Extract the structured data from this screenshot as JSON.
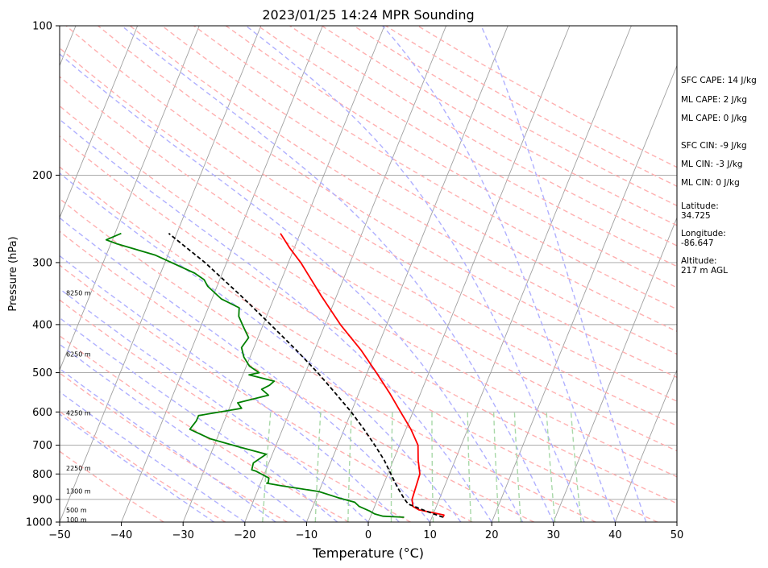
{
  "chart_data": {
    "type": "line",
    "title": "2023/01/25 14:24 MPR Sounding",
    "xlabel": "Temperature (°C)",
    "ylabel": "Pressure (hPa)",
    "xlim": [
      -50,
      50
    ],
    "ylim_pressure": [
      1000,
      100
    ],
    "y_scale": "log",
    "x_ticks": [
      -50,
      -40,
      -30,
      -20,
      -10,
      0,
      10,
      20,
      30,
      40,
      50
    ],
    "x_tick_labels": [
      "−50",
      "−40",
      "−30",
      "−20",
      "−10",
      "0",
      "10",
      "20",
      "30",
      "40",
      "50"
    ],
    "y_ticks": [
      100,
      200,
      300,
      400,
      500,
      600,
      700,
      800,
      900,
      1000
    ],
    "y_tick_labels": [
      "100",
      "200",
      "300",
      "400",
      "500",
      "600",
      "700",
      "800",
      "900",
      "1000"
    ],
    "grid": true,
    "background_lines": {
      "isotherms": {
        "color": "#a0a0a0"
      },
      "dry_adiabats": {
        "color": "#ffb0b0"
      },
      "moist_adiabats": {
        "color": "#b0b0ff"
      },
      "mixing_ratios": {
        "color": "#a8d8a8"
      }
    },
    "height_labels": [
      {
        "text": "100 m",
        "pressure": 988
      },
      {
        "text": "500 m",
        "pressure": 946
      },
      {
        "text": "1300 m",
        "pressure": 866
      },
      {
        "text": "2250 m",
        "pressure": 778
      },
      {
        "text": "4250 m",
        "pressure": 603
      },
      {
        "text": "6250 m",
        "pressure": 459
      },
      {
        "text": "8250 m",
        "pressure": 345
      }
    ],
    "series": [
      {
        "kind": "temperature",
        "color": "#ff0000",
        "pressure": [
          978,
          968,
          957,
          945,
          930,
          900,
          850,
          800,
          750,
          700,
          650,
          600,
          550,
          500,
          450,
          400,
          350,
          300,
          280,
          262
        ],
        "temperature": [
          11.8,
          11.8,
          9.8,
          7.4,
          6.2,
          5.6,
          5.4,
          5.2,
          4.0,
          3.0,
          0.8,
          -2.0,
          -5.0,
          -8.5,
          -12.5,
          -17.5,
          -22.5,
          -28.0,
          -30.8,
          -33.2
        ]
      },
      {
        "kind": "dewpoint",
        "color": "#008000",
        "pressure": [
          978,
          973,
          963,
          950,
          930,
          912,
          893,
          868,
          845,
          835,
          832,
          815,
          800,
          790,
          785,
          760,
          730,
          705,
          680,
          650,
          625,
          610,
          590,
          575,
          555,
          540,
          530,
          520,
          505,
          500,
          485,
          465,
          445,
          425,
          405,
          385,
          370,
          355,
          335,
          325,
          315,
          290,
          275,
          270,
          262
        ],
        "temperature": [
          5.5,
          2.0,
          0.5,
          -0.5,
          -2.5,
          -3.5,
          -6.5,
          -10.0,
          -16.5,
          -19.0,
          -18.8,
          -19.0,
          -20.5,
          -21.5,
          -22.3,
          -22.5,
          -21.0,
          -26.0,
          -31.0,
          -35.0,
          -34.5,
          -34.5,
          -28.0,
          -29.0,
          -24.5,
          -26.0,
          -25.0,
          -24.5,
          -29.0,
          -27.5,
          -29.5,
          -31.0,
          -32.0,
          -31.5,
          -33.0,
          -34.5,
          -35.0,
          -38.5,
          -41.5,
          -42.5,
          -44.5,
          -52.0,
          -59.0,
          -61.0,
          -59.0
        ]
      },
      {
        "kind": "parcel",
        "color": "#000000",
        "style": "dashed",
        "pressure": [
          978,
          950,
          920,
          900,
          870,
          850,
          800,
          750,
          700,
          650,
          600,
          550,
          500,
          450,
          400,
          350,
          300,
          262
        ],
        "temperature": [
          11.8,
          8.6,
          5.3,
          4.4,
          3.2,
          2.4,
          0.5,
          -1.5,
          -4.0,
          -6.8,
          -10.0,
          -13.8,
          -18.0,
          -23.0,
          -28.8,
          -35.5,
          -43.5,
          -51.3
        ]
      }
    ]
  },
  "panel": {
    "sfc_cape": "SFC CAPE: 14 J/kg",
    "ml_cape_1": "ML CAPE: 2 J/kg",
    "ml_cape_2": "ML CAPE: 0 J/kg",
    "sfc_cin": "SFC CIN: -9 J/kg",
    "ml_cin_1": "ML CIN: -3 J/kg",
    "ml_cin_2": "ML CIN: 0 J/kg",
    "latitude_label": "Latitude:",
    "latitude_value": "34.725",
    "longitude_label": "Longitude:",
    "longitude_value": "-86.647",
    "altitude_label": "Altitude:",
    "altitude_value": "217 m AGL"
  }
}
